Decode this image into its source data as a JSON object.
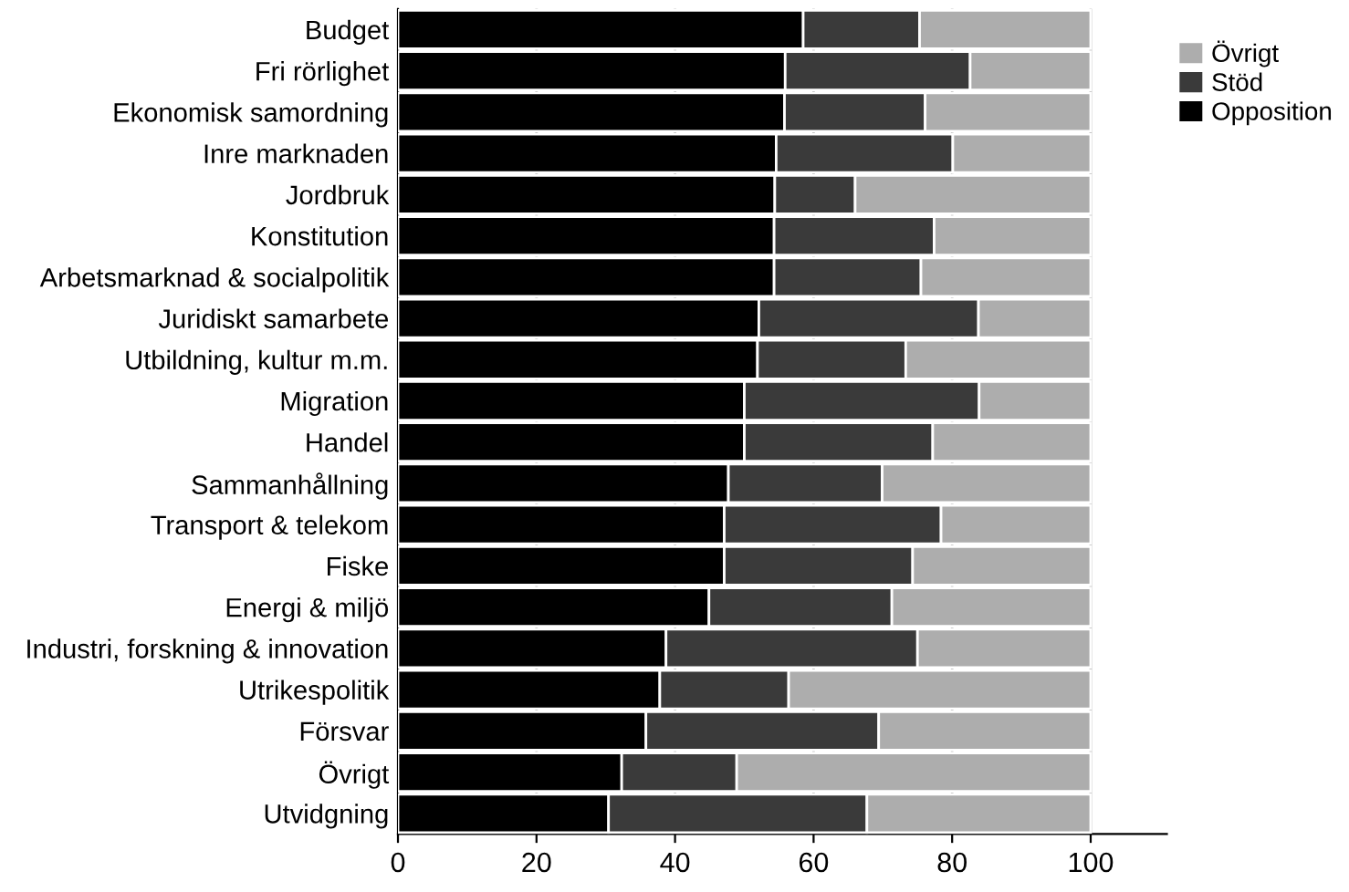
{
  "chart_data": {
    "type": "bar",
    "orientation": "horizontal",
    "stacked": true,
    "categories": [
      "Budget",
      "Fri rörlighet",
      "Ekonomisk samordning",
      "Inre marknaden",
      "Jordbruk",
      "Konstitution",
      "Arbetsmarknad & socialpolitik",
      "Juridiskt samarbete",
      "Utbildning, kultur m.m.",
      "Migration",
      "Handel",
      "Sammanhållning",
      "Transport & telekom",
      "Fiske",
      "Energi & miljö",
      "Industri, forskning & innovation",
      "Utrikespolitik",
      "Försvar",
      "Övrigt",
      "Utvidgning"
    ],
    "series": [
      {
        "name": "Opposition",
        "color": "#000000",
        "values": [
          58.5,
          55.9,
          55.8,
          54.6,
          54.4,
          54.3,
          54.3,
          52.1,
          51.9,
          50.0,
          50.0,
          47.7,
          47.1,
          47.1,
          44.9,
          38.7,
          37.8,
          35.8,
          32.3,
          30.4
        ]
      },
      {
        "name": "Stöd",
        "color": "#3a3a3a",
        "values": [
          16.8,
          26.7,
          20.3,
          25.5,
          11.6,
          23.1,
          21.2,
          31.7,
          21.4,
          33.9,
          27.2,
          22.2,
          31.3,
          27.2,
          26.4,
          36.3,
          18.6,
          33.6,
          16.6,
          37.3
        ]
      },
      {
        "name": "Övrigt",
        "color": "#adadad",
        "values": [
          24.7,
          17.4,
          23.9,
          19.9,
          34.0,
          22.6,
          24.5,
          16.2,
          26.7,
          16.1,
          22.8,
          30.1,
          21.6,
          25.7,
          28.7,
          25.0,
          43.6,
          30.6,
          51.1,
          32.3
        ]
      }
    ],
    "xlim": [
      0,
      111
    ],
    "xticks": [
      0,
      20,
      40,
      60,
      80,
      100
    ],
    "grid": "x",
    "legend": "top right"
  }
}
